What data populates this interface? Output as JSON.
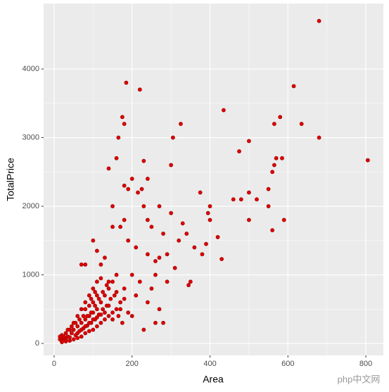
{
  "chart_data": {
    "type": "scatter",
    "x_label": "Area",
    "y_label": "TotalPrice",
    "xlim": [
      -27,
      845
    ],
    "ylim": [
      -174,
      4954
    ],
    "xticks": [
      0,
      200,
      400,
      600,
      800
    ],
    "yticks": [
      0,
      1000,
      2000,
      3000,
      4000
    ],
    "grid": true,
    "watermark": "php中文网",
    "series": [
      {
        "color": "#dd0000",
        "x": [
          680,
          805,
          680,
          615,
          635,
          580,
          565,
          570,
          585,
          560,
          565,
          590,
          560,
          550,
          500,
          475,
          500,
          480,
          520,
          550,
          460,
          500,
          435,
          400,
          395,
          375,
          400,
          390,
          420,
          430,
          380,
          360,
          345,
          185,
          220,
          175,
          180,
          165,
          305,
          325,
          160,
          140,
          200,
          230,
          300,
          240,
          215,
          225,
          190,
          180,
          150,
          230,
          270,
          180,
          170,
          240,
          250,
          300,
          330,
          280,
          320,
          340,
          290,
          270,
          260,
          240,
          210,
          190,
          150,
          130,
          100,
          110,
          120,
          80,
          70,
          200,
          220,
          260,
          290,
          310,
          350,
          250,
          240,
          210,
          180,
          160,
          140,
          270,
          260,
          280,
          230,
          150,
          170,
          190,
          200,
          20,
          25,
          30,
          35,
          40,
          45,
          50,
          55,
          60,
          65,
          70,
          75,
          80,
          85,
          90,
          95,
          100,
          105,
          110,
          115,
          120,
          125,
          130,
          135,
          140,
          145,
          150,
          155,
          160,
          20,
          30,
          40,
          50,
          60,
          70,
          80,
          90,
          100,
          110,
          120,
          30,
          40,
          50,
          60,
          70,
          80,
          90,
          100,
          110,
          120,
          130,
          140,
          150,
          160,
          60,
          70,
          80,
          90,
          100,
          110,
          120,
          85,
          95,
          105,
          75,
          65,
          55,
          45,
          35,
          25,
          15,
          15,
          20,
          170,
          180,
          165,
          175,
          130,
          140,
          100,
          90,
          80,
          115,
          125,
          135,
          110,
          95,
          105
        ],
        "values": [
          4700,
          2670,
          3000,
          3750,
          3200,
          3300,
          3200,
          2700,
          2700,
          2500,
          2600,
          1800,
          1650,
          2250,
          2950,
          2800,
          2200,
          2100,
          2100,
          2000,
          2100,
          1800,
          3400,
          2000,
          1900,
          2200,
          1800,
          1450,
          1550,
          1230,
          1300,
          1400,
          850,
          3800,
          3700,
          3300,
          3200,
          3000,
          3000,
          3200,
          2700,
          2550,
          2400,
          2660,
          2600,
          2400,
          2200,
          2250,
          2250,
          2300,
          2000,
          2000,
          2000,
          1800,
          1700,
          1800,
          1700,
          1900,
          1750,
          1600,
          1500,
          1600,
          1300,
          1250,
          1200,
          1300,
          1400,
          1500,
          1700,
          1250,
          1500,
          1350,
          1150,
          1150,
          1150,
          1000,
          900,
          1000,
          900,
          1100,
          900,
          800,
          600,
          700,
          800,
          1000,
          900,
          500,
          300,
          300,
          200,
          350,
          500,
          450,
          400,
          50,
          80,
          60,
          100,
          90,
          150,
          200,
          120,
          250,
          180,
          300,
          220,
          350,
          260,
          400,
          300,
          450,
          350,
          500,
          420,
          600,
          500,
          700,
          550,
          800,
          650,
          900,
          700,
          750,
          120,
          150,
          200,
          300,
          400,
          500,
          600,
          700,
          800,
          900,
          950,
          30,
          40,
          60,
          80,
          100,
          150,
          180,
          200,
          250,
          300,
          350,
          400,
          450,
          500,
          150,
          200,
          250,
          300,
          350,
          380,
          420,
          400,
          450,
          550,
          400,
          350,
          300,
          250,
          200,
          100,
          60,
          100,
          20,
          600,
          650,
          400,
          300,
          450,
          550,
          600,
          550,
          500,
          650,
          750,
          850,
          700,
          650,
          750
        ]
      }
    ]
  }
}
